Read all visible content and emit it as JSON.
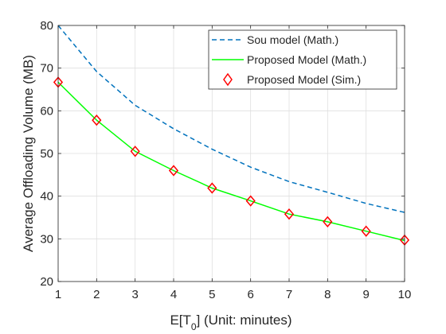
{
  "chart_data": {
    "type": "line",
    "title": "",
    "xlabel": {
      "main": "E[T",
      "sub": "0",
      "rest": "] (Unit: minutes)"
    },
    "ylabel": "Average Offloading Volume (MB)",
    "xlim": [
      1,
      10
    ],
    "ylim": [
      20,
      80
    ],
    "xticks": [
      1,
      2,
      3,
      4,
      5,
      6,
      7,
      8,
      9,
      10
    ],
    "yticks": [
      20,
      30,
      40,
      50,
      60,
      70,
      80
    ],
    "grid": true,
    "legend_position": "top-right",
    "x": [
      1,
      2,
      3,
      4,
      5,
      6,
      7,
      8,
      9,
      10
    ],
    "series": [
      {
        "name": "Sou model (Math.)",
        "style": "dashed-line",
        "color": "#0072BD",
        "values": [
          80.0,
          69.2,
          61.3,
          55.8,
          51.0,
          46.8,
          43.4,
          40.9,
          38.3,
          36.2
        ]
      },
      {
        "name": "Proposed Model (Math.)",
        "style": "solid-line",
        "color": "#00FF00",
        "values": [
          66.7,
          57.8,
          50.5,
          46.0,
          41.9,
          38.9,
          35.8,
          34.0,
          31.8,
          29.6
        ]
      },
      {
        "name": "Proposed Model (Sim.)",
        "style": "diamond-markers",
        "color": "#FF0000",
        "values": [
          66.7,
          57.8,
          50.5,
          46.0,
          41.9,
          38.9,
          35.8,
          34.0,
          31.8,
          29.7
        ]
      }
    ]
  }
}
